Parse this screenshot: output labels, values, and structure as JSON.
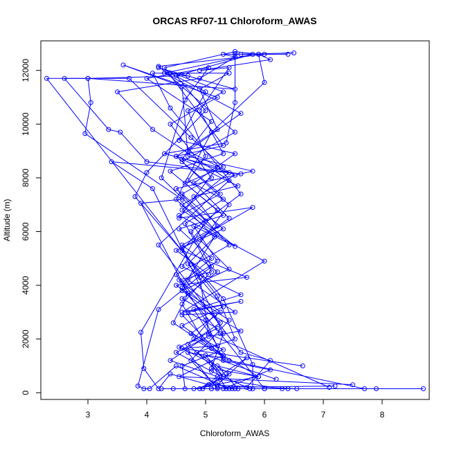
{
  "chart_data": {
    "type": "line",
    "title": "ORCAS RF07-11 Chloroform_AWAS",
    "xlabel": "Chloroform_AWAS",
    "ylabel": "Altitude (m)",
    "xlim": [
      2.2,
      8.8
    ],
    "ylim": [
      -250,
      13100
    ],
    "xticks": [
      "3",
      "4",
      "5",
      "6",
      "7",
      "8"
    ],
    "yticks": [
      "0",
      "2000",
      "4000",
      "6000",
      "8000",
      "10000",
      "12000"
    ],
    "grid": false,
    "legend": "none",
    "line_color": "#0000ff",
    "series": [
      {
        "points": [
          [
            8.7,
            150
          ],
          [
            4.25,
            150
          ],
          [
            4.45,
            150
          ],
          [
            5.2,
            150
          ],
          [
            4.7,
            1500
          ],
          [
            5.3,
            1300
          ],
          [
            4.6,
            2900
          ],
          [
            5.5,
            3000
          ],
          [
            4.7,
            4200
          ],
          [
            5.2,
            4900
          ],
          [
            4.8,
            6200
          ],
          [
            5.5,
            5450
          ],
          [
            4.6,
            7000
          ],
          [
            5.5,
            8100
          ],
          [
            4.7,
            9000
          ],
          [
            5.6,
            10400
          ],
          [
            4.3,
            11900
          ],
          [
            5.8,
            12600
          ],
          [
            4.5,
            11800
          ],
          [
            5.0,
            10500
          ],
          [
            4.0,
            8200
          ],
          [
            3.8,
            7300
          ],
          [
            5.3,
            3500
          ],
          [
            5.8,
            1050
          ],
          [
            5.8,
            150
          ]
        ]
      },
      {
        "points": [
          [
            7.9,
            150
          ],
          [
            5.1,
            150
          ],
          [
            5.2,
            600
          ],
          [
            4.4,
            1200
          ],
          [
            4.95,
            2000
          ],
          [
            4.6,
            3300
          ],
          [
            5.05,
            4400
          ],
          [
            4.5,
            5300
          ],
          [
            5.3,
            6100
          ],
          [
            4.6,
            7400
          ],
          [
            5.1,
            8000
          ],
          [
            4.4,
            10000
          ],
          [
            5.2,
            11000
          ],
          [
            3.6,
            12200
          ],
          [
            4.6,
            11400
          ],
          [
            4.7,
            8800
          ],
          [
            5.8,
            8250
          ],
          [
            4.5,
            7600
          ],
          [
            5.4,
            5500
          ],
          [
            4.5,
            4400
          ],
          [
            5.0,
            2700
          ],
          [
            5.3,
            1200
          ],
          [
            6.1,
            850
          ],
          [
            5.3,
            150
          ],
          [
            6.0,
            150
          ]
        ]
      },
      {
        "points": [
          [
            6.65,
            1000
          ],
          [
            4.6,
            1650
          ],
          [
            5.2,
            1750
          ],
          [
            4.8,
            3100
          ],
          [
            5.6,
            3650
          ],
          [
            4.6,
            4700
          ],
          [
            5.4,
            7000
          ],
          [
            4.5,
            8800
          ],
          [
            5.3,
            9200
          ],
          [
            4.3,
            12100
          ],
          [
            5.5,
            12700
          ],
          [
            5.9,
            12600
          ],
          [
            5.6,
            12600
          ],
          [
            6.5,
            12650
          ],
          [
            5.5,
            12600
          ],
          [
            5.5,
            10800
          ],
          [
            5.35,
            9300
          ],
          [
            4.3,
            8900
          ],
          [
            5.2,
            8400
          ],
          [
            4.55,
            6500
          ],
          [
            5.8,
            6900
          ],
          [
            4.6,
            5400
          ],
          [
            4.9,
            4300
          ],
          [
            5.05,
            2200
          ],
          [
            7.1,
            200
          ]
        ]
      },
      {
        "points": [
          [
            7.2,
            250
          ],
          [
            5.2,
            200
          ],
          [
            4.75,
            1200
          ],
          [
            5.4,
            2700
          ],
          [
            4.5,
            4000
          ],
          [
            5.7,
            4300
          ],
          [
            4.6,
            5300
          ],
          [
            5.2,
            6800
          ],
          [
            4.4,
            8250
          ],
          [
            5.3,
            8900
          ],
          [
            4.9,
            10500
          ],
          [
            5.4,
            12100
          ],
          [
            4.9,
            12000
          ],
          [
            6.1,
            12400
          ],
          [
            5.9,
            12600
          ],
          [
            6.0,
            11550
          ],
          [
            5.1,
            9700
          ],
          [
            4.5,
            7200
          ],
          [
            5.15,
            5800
          ],
          [
            4.6,
            3900
          ],
          [
            5.25,
            2200
          ],
          [
            6.0,
            150
          ],
          [
            6.3,
            150
          ],
          [
            5.25,
            500
          ],
          [
            4.95,
            150
          ]
        ]
      },
      {
        "points": [
          [
            7.5,
            300
          ],
          [
            4.55,
            600
          ],
          [
            5.3,
            1400
          ],
          [
            4.6,
            2500
          ],
          [
            5.3,
            3200
          ],
          [
            4.7,
            4800
          ],
          [
            5.2,
            5900
          ],
          [
            4.6,
            6800
          ],
          [
            5.4,
            8200
          ],
          [
            4.5,
            8800
          ],
          [
            5.2,
            9800
          ],
          [
            4.9,
            11300
          ],
          [
            5.4,
            11900
          ],
          [
            4.1,
            11900
          ],
          [
            4.4,
            10600
          ],
          [
            5.6,
            7400
          ],
          [
            4.75,
            6000
          ],
          [
            5.1,
            4700
          ],
          [
            4.2,
            3100
          ],
          [
            3.85,
            250
          ],
          [
            3.95,
            150
          ],
          [
            4.05,
            150
          ],
          [
            4.5,
            1000
          ],
          [
            5.4,
            150
          ],
          [
            6.4,
            150
          ]
        ]
      },
      {
        "points": [
          [
            6.2,
            500
          ],
          [
            5.0,
            1400
          ],
          [
            5.3,
            600
          ],
          [
            4.7,
            1800
          ],
          [
            5.25,
            2600
          ],
          [
            4.55,
            4200
          ],
          [
            5.1,
            4500
          ],
          [
            4.65,
            6300
          ],
          [
            5.3,
            7200
          ],
          [
            4.7,
            7900
          ],
          [
            5.0,
            8800
          ],
          [
            4.7,
            10500
          ],
          [
            5.3,
            11200
          ],
          [
            4.2,
            12100
          ],
          [
            5.5,
            11300
          ],
          [
            3.0,
            11700
          ],
          [
            2.3,
            11700
          ],
          [
            5.2,
            3600
          ],
          [
            5.5,
            2000
          ],
          [
            4.85,
            1500
          ],
          [
            5.4,
            700
          ],
          [
            4.9,
            150
          ],
          [
            5.7,
            1300
          ],
          [
            5.2,
            300
          ],
          [
            5.5,
            150
          ]
        ]
      },
      {
        "points": [
          [
            7.7,
            150
          ],
          [
            5.4,
            1200
          ],
          [
            4.8,
            2000
          ],
          [
            5.15,
            2900
          ],
          [
            4.6,
            3800
          ],
          [
            5.4,
            4600
          ],
          [
            4.9,
            5700
          ],
          [
            5.4,
            6500
          ],
          [
            4.8,
            7800
          ],
          [
            5.5,
            8900
          ],
          [
            4.55,
            9400
          ],
          [
            5.0,
            11200
          ],
          [
            4.4,
            11900
          ],
          [
            4.7,
            11800
          ],
          [
            3.0,
            11700
          ],
          [
            3.05,
            10800
          ],
          [
            2.95,
            9650
          ],
          [
            4.6,
            7200
          ],
          [
            3.9,
            7050
          ],
          [
            4.7,
            3700
          ],
          [
            4.45,
            2600
          ],
          [
            5.1,
            1650
          ],
          [
            5.9,
            600
          ],
          [
            5.2,
            1000
          ],
          [
            5.55,
            150
          ]
        ]
      },
      {
        "points": [
          [
            4.65,
            150
          ],
          [
            4.6,
            1000
          ],
          [
            5.3,
            1600
          ],
          [
            4.75,
            2200
          ],
          [
            5.25,
            3000
          ],
          [
            4.6,
            4100
          ],
          [
            5.1,
            5000
          ],
          [
            4.55,
            6100
          ],
          [
            5.3,
            6600
          ],
          [
            4.65,
            7800
          ],
          [
            5.3,
            8400
          ],
          [
            4.75,
            9500
          ],
          [
            3.7,
            11700
          ],
          [
            2.6,
            11700
          ],
          [
            3.35,
            9800
          ],
          [
            3.55,
            9700
          ],
          [
            4.0,
            8600
          ],
          [
            5.6,
            8150
          ],
          [
            3.4,
            8600
          ],
          [
            4.1,
            7600
          ],
          [
            5.3,
            2200
          ],
          [
            5.1,
            900
          ],
          [
            5.9,
            600
          ],
          [
            4.8,
            150
          ],
          [
            5.45,
            150
          ]
        ]
      },
      {
        "points": [
          [
            5.35,
            150
          ],
          [
            5.1,
            1100
          ],
          [
            4.55,
            1700
          ],
          [
            5.2,
            2400
          ],
          [
            4.7,
            3000
          ],
          [
            5.6,
            3400
          ],
          [
            4.6,
            3000
          ],
          [
            6.0,
            4900
          ],
          [
            4.55,
            6600
          ],
          [
            5.25,
            7400
          ],
          [
            4.6,
            8600
          ],
          [
            5.5,
            9700
          ],
          [
            4.2,
            12150
          ],
          [
            6.0,
            12600
          ],
          [
            6.4,
            12600
          ],
          [
            5.3,
            12600
          ],
          [
            5.5,
            12500
          ],
          [
            4.9,
            11700
          ],
          [
            3.5,
            11200
          ],
          [
            4.1,
            9800
          ],
          [
            5.4,
            7900
          ],
          [
            4.2,
            5500
          ],
          [
            5.6,
            1500
          ],
          [
            6.1,
            1200
          ],
          [
            5.7,
            200
          ]
        ]
      },
      {
        "points": [
          [
            5.75,
            150
          ],
          [
            5.1,
            800
          ],
          [
            4.5,
            1500
          ],
          [
            5.05,
            2100
          ],
          [
            5.6,
            2300
          ],
          [
            4.6,
            3500
          ],
          [
            5.2,
            4500
          ],
          [
            4.6,
            5500
          ],
          [
            5.2,
            6200
          ],
          [
            4.8,
            7300
          ],
          [
            5.55,
            7700
          ],
          [
            4.6,
            8700
          ],
          [
            5.1,
            10100
          ],
          [
            4.0,
            11700
          ],
          [
            5.05,
            12100
          ],
          [
            4.65,
            10900
          ],
          [
            4.25,
            8000
          ],
          [
            5.0,
            6400
          ],
          [
            3.9,
            2250
          ],
          [
            3.95,
            900
          ],
          [
            4.2,
            150
          ],
          [
            4.4,
            700
          ],
          [
            5.05,
            300
          ],
          [
            6.55,
            150
          ],
          [
            5.1,
            150
          ]
        ]
      }
    ]
  }
}
